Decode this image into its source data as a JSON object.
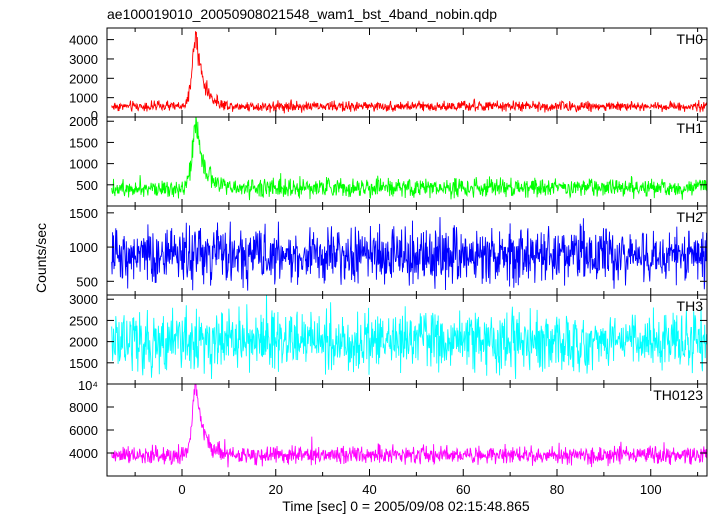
{
  "chart_data": {
    "type": "line",
    "title": "ae100019010_20050908021548_wam1_bst_4band_nobin.qdp",
    "xlabel": "Time [sec] 0 = 2005/09/08 02:15:48.865",
    "ylabel": "Counts/sec",
    "xlim": [
      -16,
      112
    ],
    "x_ticks": [
      0,
      20,
      40,
      60,
      80,
      100
    ],
    "x_tick_labels": [
      "0",
      "20",
      "40",
      "60",
      "80",
      "100"
    ],
    "series": [
      {
        "name": "TH0",
        "color": "#ff0000",
        "ylim": [
          0,
          4600
        ],
        "y_ticks": [
          0,
          1000,
          2000,
          3000,
          4000
        ],
        "y_tick_labels": [
          "0",
          "1000",
          "2000",
          "3000",
          "4000"
        ],
        "baseline": 550,
        "noise": 130,
        "peak": {
          "x": 3,
          "height": 3600,
          "rise": 0.8,
          "decay": 1.6
        }
      },
      {
        "name": "TH1",
        "color": "#00ff00",
        "ylim": [
          0,
          2100
        ],
        "y_ticks": [
          500,
          1000,
          1500,
          2000
        ],
        "y_tick_labels": [
          "500",
          "1000",
          "1500",
          "2000"
        ],
        "baseline": 430,
        "noise": 110,
        "peak": {
          "x": 3,
          "height": 1450,
          "rise": 0.8,
          "decay": 1.6
        }
      },
      {
        "name": "TH2",
        "color": "#0000ff",
        "ylim": [
          300,
          1600
        ],
        "y_ticks": [
          500,
          1000,
          1500
        ],
        "y_tick_labels": [
          "500",
          "1000",
          "1500"
        ],
        "baseline": 880,
        "noise": 200,
        "peak": {
          "x": 3,
          "height": 0,
          "rise": 0.8,
          "decay": 1.6
        }
      },
      {
        "name": "TH3",
        "color": "#00ffff",
        "ylim": [
          1000,
          3100
        ],
        "y_ticks": [
          1000,
          1500,
          2000,
          2500,
          3000
        ],
        "y_tick_labels": [
          "",
          "1500",
          "2000",
          "2500",
          "3000"
        ],
        "baseline": 2000,
        "noise": 330,
        "peak": {
          "x": 3,
          "height": 0,
          "rise": 0.8,
          "decay": 1.6
        }
      },
      {
        "name": "TH0123",
        "color": "#ff00ff",
        "ylim": [
          2000,
          10000
        ],
        "y_ticks": [
          4000,
          6000,
          8000,
          10000
        ],
        "y_tick_labels": [
          "4000",
          "6000",
          "8000",
          "10⁴"
        ],
        "baseline": 3800,
        "noise": 380,
        "peak": {
          "x": 3,
          "height": 6200,
          "rise": 0.8,
          "decay": 1.6
        }
      }
    ]
  }
}
